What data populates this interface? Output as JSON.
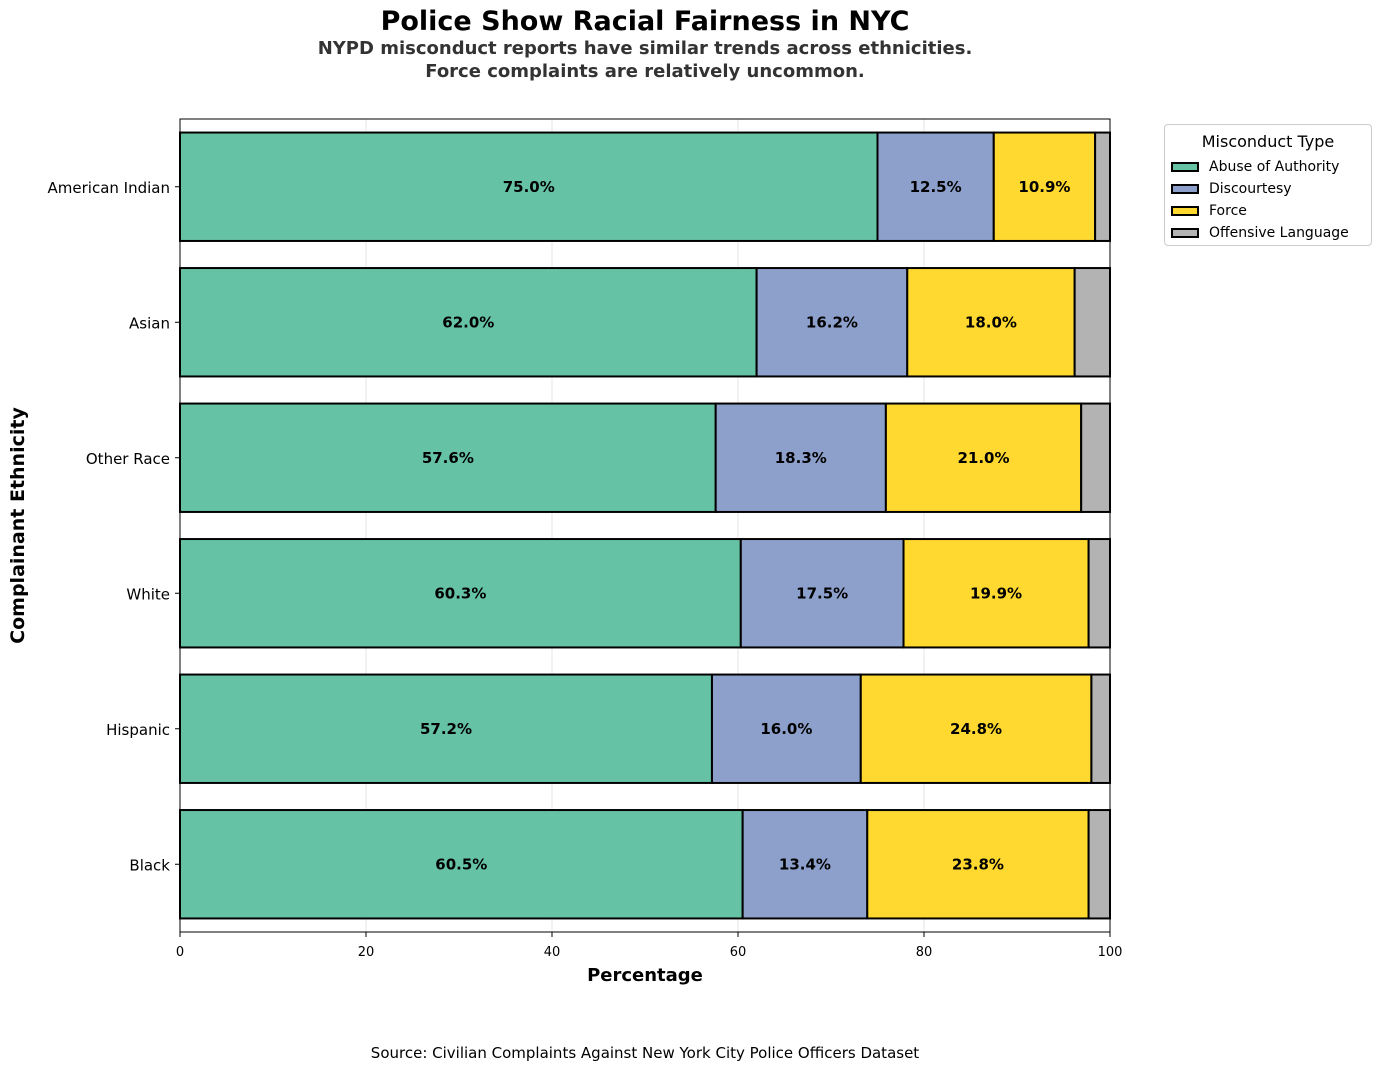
{
  "title": "Police Show Racial Fairness in NYC",
  "subtitle": [
    "NYPD misconduct reports have similar trends across ethnicities.",
    "Force complaints are relatively uncommon."
  ],
  "source": "Source: Civilian Complaints Against New York City Police Officers Dataset",
  "legend": {
    "title": "Misconduct Type",
    "placement": "outside upper-right"
  },
  "chart_data": {
    "type": "bar",
    "orientation": "horizontal",
    "stacked": true,
    "title": "Police Show Racial Fairness in NYC",
    "xlabel": "Percentage",
    "ylabel": "Complainant Ethnicity",
    "xlim": [
      0,
      100
    ],
    "xticks": [
      "0",
      "20",
      "40",
      "60",
      "80",
      "100"
    ],
    "grid": "vertical, light",
    "categories": [
      "American Indian",
      "Asian",
      "Other Race",
      "White",
      "Hispanic",
      "Black"
    ],
    "series": [
      {
        "name": "Abuse of Authority",
        "color": "#66c2a5",
        "values": [
          75.0,
          62.0,
          57.6,
          60.3,
          57.2,
          60.5
        ],
        "labels": [
          "75.0%",
          "62.0%",
          "57.6%",
          "60.3%",
          "57.2%",
          "60.5%"
        ]
      },
      {
        "name": "Discourtesy",
        "color": "#8da0cb",
        "values": [
          12.5,
          16.2,
          18.3,
          17.5,
          16.0,
          13.4
        ],
        "labels": [
          "12.5%",
          "16.2%",
          "18.3%",
          "17.5%",
          "16.0%",
          "13.4%"
        ]
      },
      {
        "name": "Force",
        "color": "#ffd92f",
        "values": [
          10.9,
          18.0,
          21.0,
          19.9,
          24.8,
          23.8
        ],
        "labels": [
          "10.9%",
          "18.0%",
          "21.0%",
          "19.9%",
          "24.8%",
          "23.8%"
        ]
      },
      {
        "name": "Offensive Language",
        "color": "#b3b3b3",
        "values": [
          1.6,
          3.8,
          3.1,
          2.3,
          2.0,
          2.3
        ],
        "labels": [
          "",
          "",
          "",
          "",
          "",
          ""
        ]
      }
    ]
  }
}
